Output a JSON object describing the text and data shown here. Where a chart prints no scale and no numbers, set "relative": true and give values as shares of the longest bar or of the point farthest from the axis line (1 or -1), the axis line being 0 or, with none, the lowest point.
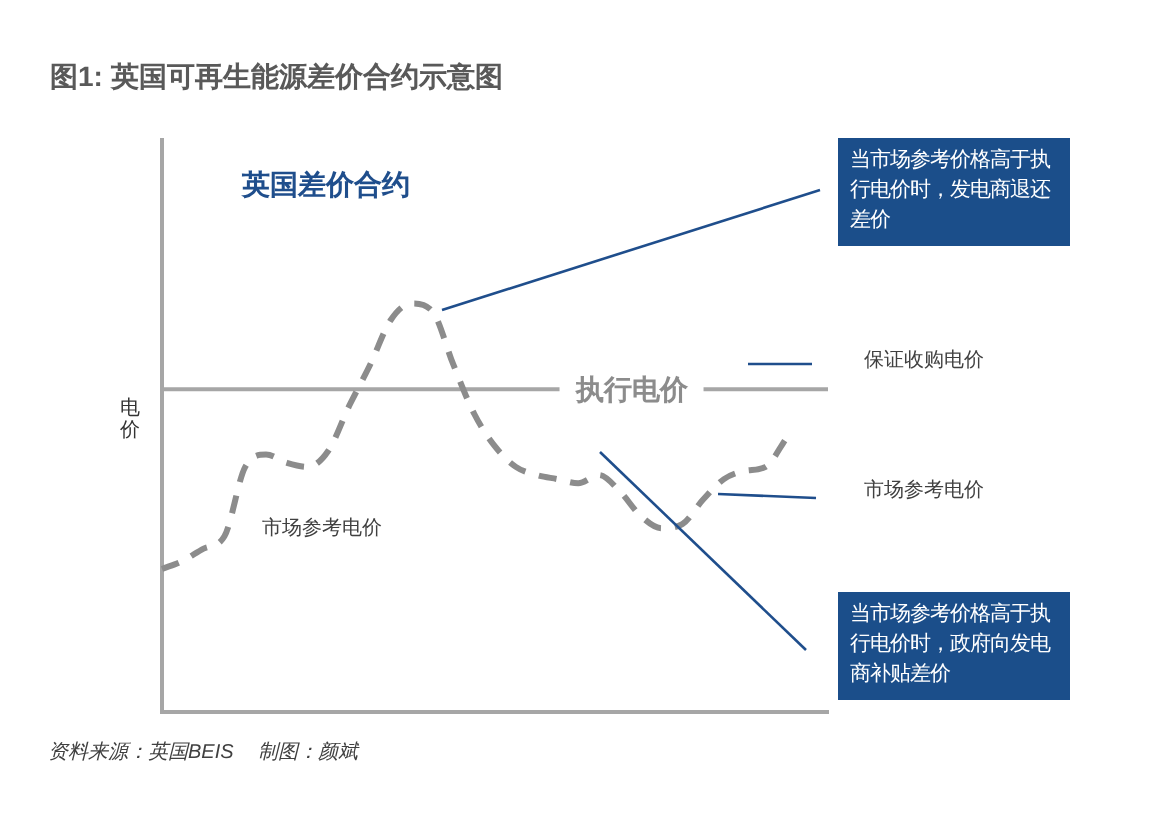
{
  "chart_data": {
    "type": "line",
    "title": "图1: 英国可再生能源差价合约示意图",
    "ylabel": "电价",
    "relative": true,
    "tick_labels": false,
    "categories": [
      null,
      null,
      null,
      null,
      null,
      null,
      null,
      null,
      null,
      null,
      null,
      null,
      null,
      null,
      null,
      null,
      null,
      null,
      null,
      null,
      null,
      null,
      null,
      null,
      null,
      null,
      null,
      null,
      null,
      null,
      null,
      null,
      null
    ],
    "series": [
      {
        "color": "#8c8c8c",
        "line_style": "dashed",
        "values": [
          0.35,
          0.37,
          0.4,
          0.43,
          0.6,
          0.63,
          0.61,
          0.6,
          0.64,
          0.75,
          0.85,
          0.96,
          1.0,
          0.98,
          0.85,
          0.73,
          0.65,
          0.6,
          0.58,
          0.57,
          0.56,
          0.58,
          0.54,
          0.48,
          0.45,
          0.46,
          0.52,
          0.57,
          0.59,
          0.6,
          0.67,
          null,
          null
        ]
      }
    ],
    "ref_lines": [
      {
        "axis": "y",
        "value": 0.79,
        "label": "执行电价",
        "color": "#a6a6a6"
      }
    ],
    "annotations": [
      "英国差价合约",
      "市场参考电价",
      "当市场参考价格高于执行电价时，发电商退还差价",
      "保证收购电价",
      "市场参考电价",
      "当市场参考价格高于执行电价时，政府向发电商补贴差价",
      "资料来源：英国BEIS",
      "制图：颜斌"
    ]
  }
}
